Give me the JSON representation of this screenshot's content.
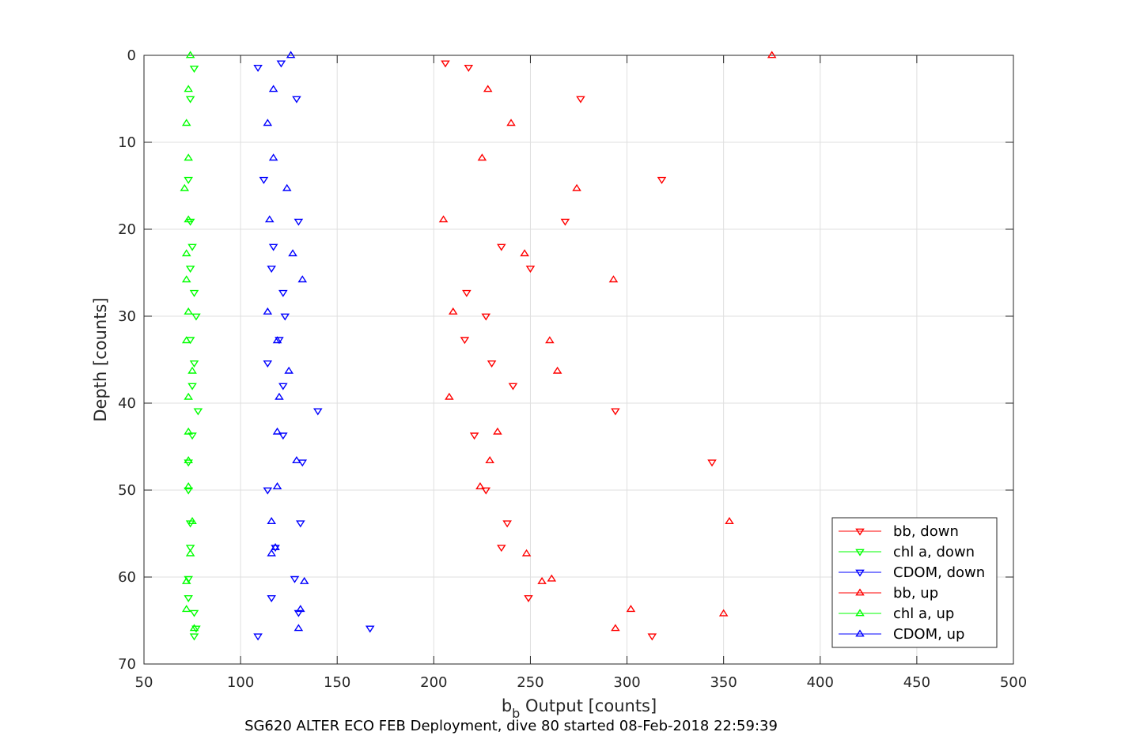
{
  "chart_data": {
    "type": "scatter",
    "title": "",
    "caption": "SG620 ALTER ECO FEB Deployment, dive 80 started 08-Feb-2018 22:59:39",
    "xlabel_main": "b",
    "xlabel_sub": "b",
    "xlabel_rest": " Output [counts]",
    "ylabel": "Depth [counts]",
    "xlim": [
      50,
      500
    ],
    "ylim": [
      0,
      70
    ],
    "y_reversed": true,
    "grid": true,
    "xticks": [
      50,
      100,
      150,
      200,
      250,
      300,
      350,
      400,
      450,
      500
    ],
    "yticks": [
      0,
      10,
      20,
      30,
      40,
      50,
      60,
      70
    ],
    "legend_position": "bottom-right",
    "series": [
      {
        "name": "bb, down",
        "color": "#ff0000",
        "marker": "triangle-down",
        "points": [
          [
            206,
            0.9
          ],
          [
            218,
            1.4
          ],
          [
            276,
            5
          ],
          [
            318,
            14.3
          ],
          [
            268,
            19.1
          ],
          [
            235,
            22
          ],
          [
            250,
            24.5
          ],
          [
            217,
            27.3
          ],
          [
            227,
            30
          ],
          [
            216,
            32.7
          ],
          [
            230,
            35.4
          ],
          [
            241,
            38
          ],
          [
            294,
            40.9
          ],
          [
            221,
            43.7
          ],
          [
            344,
            46.8
          ],
          [
            227,
            50
          ],
          [
            238,
            53.8
          ],
          [
            249,
            62.4
          ],
          [
            313,
            66.8
          ],
          [
            235,
            56.6
          ]
        ]
      },
      {
        "name": "chl a, down",
        "color": "#00ff00",
        "marker": "triangle-down",
        "points": [
          [
            76,
            1.5
          ],
          [
            74,
            5
          ],
          [
            73,
            14.3
          ],
          [
            74,
            19.1
          ],
          [
            75,
            22
          ],
          [
            74,
            24.5
          ],
          [
            76,
            27.3
          ],
          [
            77,
            30
          ],
          [
            74,
            32.7
          ],
          [
            76,
            35.4
          ],
          [
            75,
            38
          ],
          [
            78,
            40.9
          ],
          [
            75,
            43.7
          ],
          [
            73,
            46.8
          ],
          [
            73,
            50
          ],
          [
            74,
            53.8
          ],
          [
            74,
            56.6
          ],
          [
            73,
            60.2
          ],
          [
            73,
            62.4
          ],
          [
            76,
            64.1
          ],
          [
            77,
            65.9
          ],
          [
            76,
            66.8
          ]
        ]
      },
      {
        "name": "CDOM, down",
        "color": "#0000ff",
        "marker": "triangle-down",
        "points": [
          [
            121,
            0.9
          ],
          [
            109,
            1.4
          ],
          [
            129,
            5
          ],
          [
            112,
            14.3
          ],
          [
            130,
            19.1
          ],
          [
            117,
            22
          ],
          [
            116,
            24.5
          ],
          [
            122,
            27.3
          ],
          [
            123,
            30
          ],
          [
            120,
            32.7
          ],
          [
            114,
            35.4
          ],
          [
            122,
            38
          ],
          [
            140,
            40.9
          ],
          [
            122,
            43.7
          ],
          [
            132,
            46.8
          ],
          [
            114,
            50
          ],
          [
            131,
            53.8
          ],
          [
            118,
            56.6
          ],
          [
            128,
            60.2
          ],
          [
            116,
            62.4
          ],
          [
            130,
            64.1
          ],
          [
            167,
            65.9
          ],
          [
            109,
            66.8
          ]
        ]
      },
      {
        "name": "bb, up",
        "color": "#ff0000",
        "marker": "triangle-up",
        "points": [
          [
            375,
            0
          ],
          [
            228,
            3.9
          ],
          [
            240,
            7.8
          ],
          [
            225,
            11.8
          ],
          [
            274,
            15.3
          ],
          [
            205,
            18.9
          ],
          [
            247,
            22.8
          ],
          [
            293,
            25.8
          ],
          [
            210,
            29.5
          ],
          [
            260,
            32.8
          ],
          [
            264,
            36.3
          ],
          [
            208,
            39.3
          ],
          [
            233,
            43.3
          ],
          [
            229,
            46.6
          ],
          [
            224,
            49.6
          ],
          [
            353,
            53.6
          ],
          [
            248,
            57.3
          ],
          [
            256,
            60.5
          ],
          [
            261,
            60.2
          ],
          [
            302,
            63.7
          ],
          [
            350,
            64.2
          ],
          [
            294,
            65.9
          ]
        ]
      },
      {
        "name": "chl a, up",
        "color": "#00ff00",
        "marker": "triangle-up",
        "points": [
          [
            74,
            0
          ],
          [
            73,
            3.9
          ],
          [
            72,
            7.8
          ],
          [
            73,
            11.8
          ],
          [
            71,
            15.3
          ],
          [
            73,
            18.9
          ],
          [
            72,
            22.8
          ],
          [
            72,
            25.8
          ],
          [
            73,
            29.5
          ],
          [
            72,
            32.8
          ],
          [
            75,
            36.3
          ],
          [
            73,
            39.3
          ],
          [
            73,
            43.3
          ],
          [
            73,
            46.6
          ],
          [
            73,
            49.6
          ],
          [
            75,
            53.6
          ],
          [
            74,
            57.3
          ],
          [
            72,
            60.5
          ],
          [
            72,
            63.7
          ],
          [
            76,
            65.9
          ]
        ]
      },
      {
        "name": "CDOM, up",
        "color": "#0000ff",
        "marker": "triangle-up",
        "points": [
          [
            126,
            0
          ],
          [
            117,
            3.9
          ],
          [
            114,
            7.8
          ],
          [
            117,
            11.8
          ],
          [
            124,
            15.3
          ],
          [
            115,
            18.9
          ],
          [
            127,
            22.8
          ],
          [
            132,
            25.8
          ],
          [
            114,
            29.5
          ],
          [
            119,
            32.8
          ],
          [
            125,
            36.3
          ],
          [
            120,
            39.3
          ],
          [
            119,
            43.3
          ],
          [
            129,
            46.6
          ],
          [
            119,
            49.6
          ],
          [
            116,
            53.6
          ],
          [
            118,
            56.6
          ],
          [
            116,
            57.3
          ],
          [
            133,
            60.5
          ],
          [
            131,
            63.7
          ],
          [
            130,
            65.9
          ]
        ]
      }
    ]
  }
}
